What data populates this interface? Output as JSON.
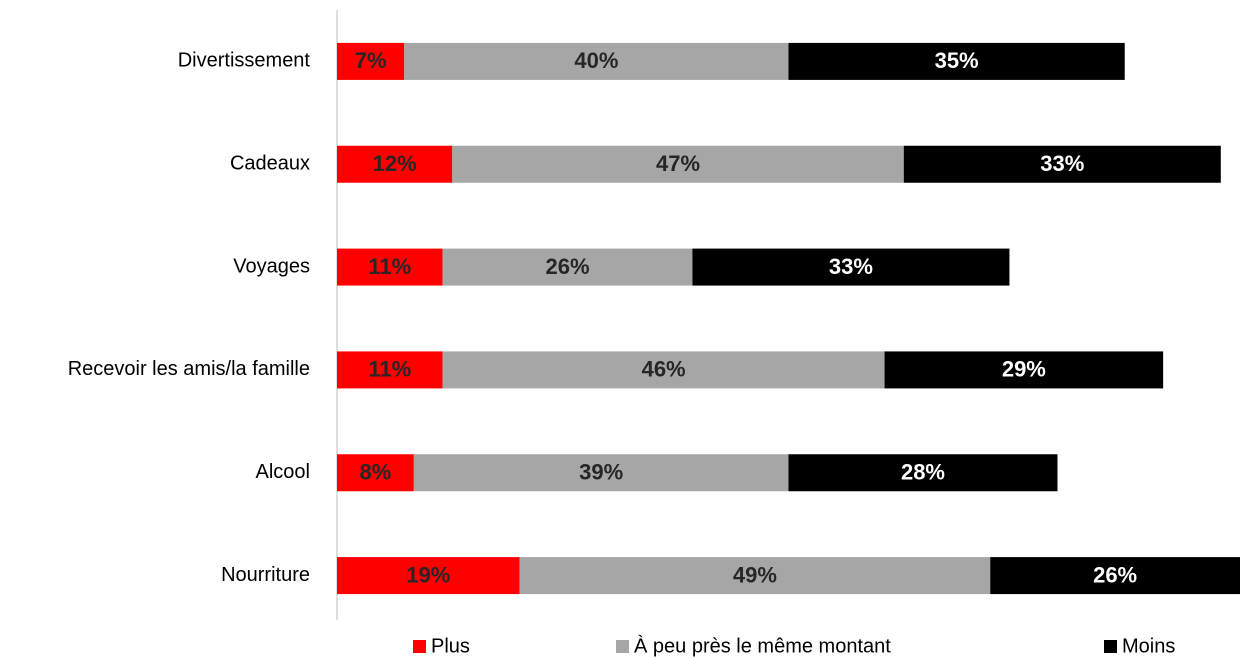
{
  "chart_data": {
    "type": "stacked-barh",
    "categories": [
      "Divertissement",
      "Cadeaux",
      "Voyages",
      "Recevoir les amis/la famille",
      "Alcool",
      "Nourriture"
    ],
    "series": [
      {
        "name": "Plus",
        "color": "#ff0000",
        "values": [
          7,
          12,
          11,
          11,
          8,
          19
        ],
        "value_labels": [
          "7%",
          "12%",
          "11%",
          "11%",
          "8%",
          "19%"
        ]
      },
      {
        "name": "À peu près le même montant",
        "color": "#a6a6a6",
        "values": [
          40,
          47,
          26,
          46,
          39,
          49
        ],
        "value_labels": [
          "40%",
          "47%",
          "26%",
          "46%",
          "39%",
          "49%"
        ]
      },
      {
        "name": "Moins",
        "color": "#000000",
        "values": [
          35,
          33,
          33,
          29,
          28,
          26
        ],
        "value_labels": [
          "35%",
          "33%",
          "33%",
          "29%",
          "28%",
          "26%"
        ]
      }
    ],
    "xlim": [
      0,
      94
    ],
    "legend": "bottom"
  }
}
